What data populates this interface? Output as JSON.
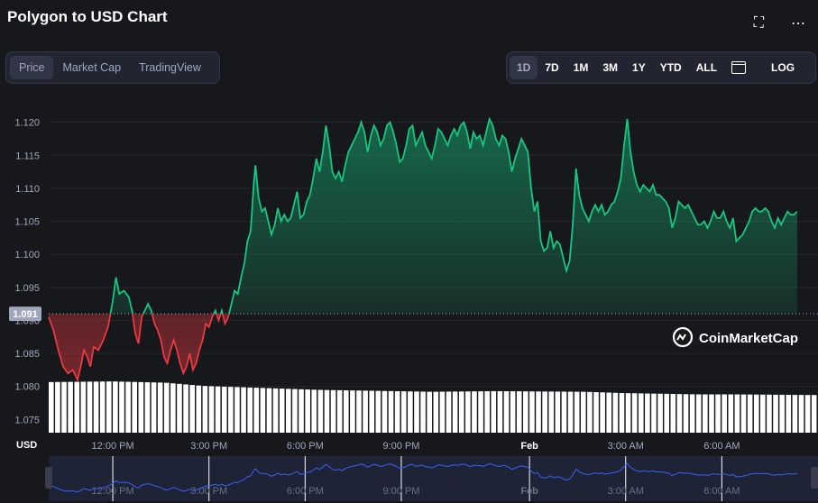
{
  "title": "Polygon to USD Chart",
  "icons": {
    "expand": "expand-icon",
    "more": "more-icon"
  },
  "view_tabs": [
    "Price",
    "Market Cap",
    "TradingView"
  ],
  "active_view": "Price",
  "range_tabs": [
    "1D",
    "7D",
    "1M",
    "3M",
    "1Y",
    "YTD",
    "ALL"
  ],
  "active_range": "1D",
  "log_label": "LOG",
  "currency_label": "USD",
  "watermark": "CoinMarketCap",
  "colors": {
    "up": "#16c784",
    "down": "#ea3943",
    "bg": "#17181b",
    "nav_line": "#3861fb"
  },
  "chart_data": {
    "type": "line",
    "title": "Polygon to USD Chart",
    "ylabel": "USD",
    "ylim": [
      1.073,
      1.1235
    ],
    "y_ticks": [
      "1.120",
      "1.115",
      "1.110",
      "1.105",
      "1.100",
      "1.095",
      "1.090",
      "1.085",
      "1.080",
      "1.075"
    ],
    "baseline": 1.091,
    "baseline_label": "1.091",
    "x_range_hours": [
      0,
      24
    ],
    "x_ticks": [
      {
        "label": "12:00 PM",
        "t": 2.0
      },
      {
        "label": "3:00 PM",
        "t": 5.0
      },
      {
        "label": "6:00 PM",
        "t": 8.0
      },
      {
        "label": "9:00 PM",
        "t": 11.0
      },
      {
        "label": "Feb",
        "t": 15.0
      },
      {
        "label": "3:00 AM",
        "t": 18.0
      },
      {
        "label": "6:00 AM",
        "t": 21.0
      }
    ],
    "series": [
      {
        "name": "Price",
        "points": [
          [
            0.0,
            1.0905
          ],
          [
            0.15,
            1.0885
          ],
          [
            0.3,
            1.0855
          ],
          [
            0.45,
            1.083
          ],
          [
            0.6,
            1.082
          ],
          [
            0.75,
            1.0825
          ],
          [
            0.9,
            1.081
          ],
          [
            1.0,
            1.083
          ],
          [
            1.1,
            1.0855
          ],
          [
            1.2,
            1.0845
          ],
          [
            1.3,
            1.083
          ],
          [
            1.4,
            1.086
          ],
          [
            1.55,
            1.0855
          ],
          [
            1.7,
            1.087
          ],
          [
            1.85,
            1.089
          ],
          [
            2.0,
            1.093
          ],
          [
            2.1,
            1.0965
          ],
          [
            2.2,
            1.094
          ],
          [
            2.35,
            1.0945
          ],
          [
            2.5,
            1.0935
          ],
          [
            2.6,
            1.0915
          ],
          [
            2.7,
            1.088
          ],
          [
            2.8,
            1.0865
          ],
          [
            2.9,
            1.0905
          ],
          [
            3.0,
            1.0915
          ],
          [
            3.1,
            1.0925
          ],
          [
            3.2,
            1.0915
          ],
          [
            3.3,
            1.0895
          ],
          [
            3.4,
            1.0885
          ],
          [
            3.5,
            1.087
          ],
          [
            3.6,
            1.0845
          ],
          [
            3.7,
            1.0835
          ],
          [
            3.8,
            1.0855
          ],
          [
            3.9,
            1.087
          ],
          [
            4.0,
            1.0855
          ],
          [
            4.1,
            1.0835
          ],
          [
            4.2,
            1.082
          ],
          [
            4.3,
            1.083
          ],
          [
            4.4,
            1.085
          ],
          [
            4.5,
            1.0825
          ],
          [
            4.6,
            1.0835
          ],
          [
            4.7,
            1.0855
          ],
          [
            4.8,
            1.087
          ],
          [
            4.9,
            1.0895
          ],
          [
            5.0,
            1.089
          ],
          [
            5.1,
            1.0905
          ],
          [
            5.2,
            1.0915
          ],
          [
            5.3,
            1.09
          ],
          [
            5.4,
            1.0915
          ],
          [
            5.5,
            1.0895
          ],
          [
            5.6,
            1.0905
          ],
          [
            5.7,
            1.0925
          ],
          [
            5.8,
            1.0945
          ],
          [
            5.9,
            1.094
          ],
          [
            6.0,
            1.0965
          ],
          [
            6.1,
            1.0985
          ],
          [
            6.2,
            1.102
          ],
          [
            6.3,
            1.1035
          ],
          [
            6.4,
            1.111
          ],
          [
            6.45,
            1.1135
          ],
          [
            6.55,
            1.1085
          ],
          [
            6.65,
            1.1065
          ],
          [
            6.75,
            1.107
          ],
          [
            6.85,
            1.105
          ],
          [
            6.95,
            1.103
          ],
          [
            7.05,
            1.1045
          ],
          [
            7.15,
            1.107
          ],
          [
            7.25,
            1.105
          ],
          [
            7.35,
            1.106
          ],
          [
            7.45,
            1.105
          ],
          [
            7.55,
            1.1055
          ],
          [
            7.65,
            1.1075
          ],
          [
            7.75,
            1.1095
          ],
          [
            7.85,
            1.1055
          ],
          [
            7.95,
            1.106
          ],
          [
            8.05,
            1.108
          ],
          [
            8.15,
            1.109
          ],
          [
            8.25,
            1.1115
          ],
          [
            8.35,
            1.1145
          ],
          [
            8.45,
            1.1125
          ],
          [
            8.55,
            1.1155
          ],
          [
            8.65,
            1.1195
          ],
          [
            8.75,
            1.1165
          ],
          [
            8.85,
            1.1125
          ],
          [
            8.95,
            1.1115
          ],
          [
            9.05,
            1.1125
          ],
          [
            9.15,
            1.111
          ],
          [
            9.25,
            1.1135
          ],
          [
            9.35,
            1.1155
          ],
          [
            9.45,
            1.1165
          ],
          [
            9.55,
            1.1175
          ],
          [
            9.65,
            1.1185
          ],
          [
            9.75,
            1.12
          ],
          [
            9.85,
            1.1185
          ],
          [
            9.95,
            1.1155
          ],
          [
            10.05,
            1.118
          ],
          [
            10.15,
            1.1195
          ],
          [
            10.25,
            1.1185
          ],
          [
            10.35,
            1.1165
          ],
          [
            10.45,
            1.1175
          ],
          [
            10.55,
            1.1195
          ],
          [
            10.65,
            1.12
          ],
          [
            10.75,
            1.1185
          ],
          [
            10.85,
            1.1165
          ],
          [
            10.95,
            1.114
          ],
          [
            11.05,
            1.1145
          ],
          [
            11.15,
            1.1165
          ],
          [
            11.25,
            1.119
          ],
          [
            11.35,
            1.1195
          ],
          [
            11.45,
            1.1165
          ],
          [
            11.55,
            1.1175
          ],
          [
            11.65,
            1.1185
          ],
          [
            11.75,
            1.1165
          ],
          [
            11.85,
            1.1155
          ],
          [
            11.95,
            1.1145
          ],
          [
            12.05,
            1.1165
          ],
          [
            12.15,
            1.119
          ],
          [
            12.25,
            1.1185
          ],
          [
            12.35,
            1.1175
          ],
          [
            12.45,
            1.1165
          ],
          [
            12.55,
            1.118
          ],
          [
            12.65,
            1.119
          ],
          [
            12.75,
            1.118
          ],
          [
            12.85,
            1.1195
          ],
          [
            12.95,
            1.12
          ],
          [
            13.05,
            1.1185
          ],
          [
            13.15,
            1.116
          ],
          [
            13.25,
            1.1185
          ],
          [
            13.35,
            1.1175
          ],
          [
            13.45,
            1.118
          ],
          [
            13.55,
            1.1165
          ],
          [
            13.65,
            1.1185
          ],
          [
            13.75,
            1.1205
          ],
          [
            13.85,
            1.1195
          ],
          [
            13.95,
            1.1175
          ],
          [
            14.05,
            1.1165
          ],
          [
            14.15,
            1.118
          ],
          [
            14.25,
            1.1175
          ],
          [
            14.35,
            1.1155
          ],
          [
            14.45,
            1.1125
          ],
          [
            14.55,
            1.1145
          ],
          [
            14.65,
            1.116
          ],
          [
            14.75,
            1.1175
          ],
          [
            14.85,
            1.1165
          ],
          [
            14.95,
            1.1155
          ],
          [
            15.05,
            1.11
          ],
          [
            15.15,
            1.1065
          ],
          [
            15.25,
            1.108
          ],
          [
            15.35,
            1.102
          ],
          [
            15.45,
            1.1005
          ],
          [
            15.55,
            1.101
          ],
          [
            15.65,
            1.1035
          ],
          [
            15.75,
            1.101
          ],
          [
            15.85,
            1.102
          ],
          [
            15.95,
            1.1015
          ],
          [
            16.05,
            1.0995
          ],
          [
            16.15,
            1.0975
          ],
          [
            16.25,
            1.099
          ],
          [
            16.35,
            1.1045
          ],
          [
            16.45,
            1.113
          ],
          [
            16.55,
            1.109
          ],
          [
            16.65,
            1.107
          ],
          [
            16.75,
            1.106
          ],
          [
            16.85,
            1.105
          ],
          [
            16.95,
            1.1065
          ],
          [
            17.05,
            1.1075
          ],
          [
            17.15,
            1.1065
          ],
          [
            17.25,
            1.1075
          ],
          [
            17.35,
            1.106
          ],
          [
            17.45,
            1.1065
          ],
          [
            17.55,
            1.1075
          ],
          [
            17.65,
            1.108
          ],
          [
            17.75,
            1.1095
          ],
          [
            17.85,
            1.1115
          ],
          [
            17.95,
            1.1165
          ],
          [
            18.05,
            1.1205
          ],
          [
            18.15,
            1.1155
          ],
          [
            18.25,
            1.1125
          ],
          [
            18.35,
            1.1105
          ],
          [
            18.45,
            1.1095
          ],
          [
            18.55,
            1.1105
          ],
          [
            18.65,
            1.11
          ],
          [
            18.75,
            1.1095
          ],
          [
            18.85,
            1.1105
          ],
          [
            18.95,
            1.109
          ],
          [
            19.05,
            1.109
          ],
          [
            19.15,
            1.1085
          ],
          [
            19.25,
            1.108
          ],
          [
            19.35,
            1.107
          ],
          [
            19.45,
            1.104
          ],
          [
            19.55,
            1.1055
          ],
          [
            19.65,
            1.108
          ],
          [
            19.75,
            1.1075
          ],
          [
            19.85,
            1.107
          ],
          [
            19.95,
            1.1075
          ],
          [
            20.05,
            1.1065
          ],
          [
            20.15,
            1.1055
          ],
          [
            20.25,
            1.1045
          ],
          [
            20.35,
            1.1045
          ],
          [
            20.45,
            1.105
          ],
          [
            20.55,
            1.104
          ],
          [
            20.65,
            1.105
          ],
          [
            20.75,
            1.1065
          ],
          [
            20.85,
            1.1055
          ],
          [
            20.95,
            1.1055
          ],
          [
            21.05,
            1.1065
          ],
          [
            21.15,
            1.105
          ],
          [
            21.25,
            1.104
          ],
          [
            21.35,
            1.1055
          ],
          [
            21.45,
            1.102
          ],
          [
            21.55,
            1.1025
          ],
          [
            21.65,
            1.103
          ],
          [
            21.75,
            1.104
          ],
          [
            21.85,
            1.105
          ],
          [
            21.95,
            1.1065
          ],
          [
            22.05,
            1.107
          ],
          [
            22.15,
            1.1065
          ],
          [
            22.25,
            1.1065
          ],
          [
            22.35,
            1.107
          ],
          [
            22.45,
            1.1065
          ],
          [
            22.55,
            1.105
          ],
          [
            22.65,
            1.104
          ],
          [
            22.75,
            1.1055
          ],
          [
            22.85,
            1.1045
          ],
          [
            22.95,
            1.1055
          ],
          [
            23.05,
            1.1065
          ],
          [
            23.15,
            1.106
          ],
          [
            23.25,
            1.106
          ],
          [
            23.35,
            1.1065
          ]
        ]
      }
    ],
    "volume": {
      "bar_count": 120,
      "profile": [
        [
          0,
          0.78
        ],
        [
          0.08,
          0.79
        ],
        [
          0.15,
          0.77
        ],
        [
          0.2,
          0.72
        ],
        [
          0.3,
          0.68
        ],
        [
          0.35,
          0.66
        ],
        [
          0.5,
          0.63
        ],
        [
          0.58,
          0.64
        ],
        [
          0.7,
          0.63
        ],
        [
          0.75,
          0.61
        ],
        [
          0.85,
          0.59
        ],
        [
          0.9,
          0.59
        ],
        [
          1.0,
          0.58
        ]
      ]
    },
    "navigator": {
      "x_ticks": [
        "12:00 PM",
        "3:00 PM",
        "6:00 PM",
        "9:00 PM",
        "Feb",
        "3:00 AM",
        "6:00 AM"
      ]
    }
  }
}
